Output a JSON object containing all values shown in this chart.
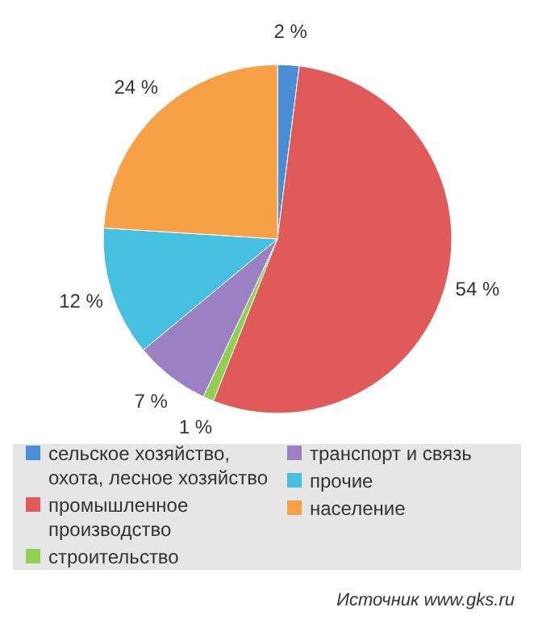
{
  "chart_data": {
    "type": "pie",
    "categories": [
      "сельское хозяйство, охота, лесное хозяйство",
      "промышленное производство",
      "строительство",
      "транспорт и связь",
      "прочие",
      "население"
    ],
    "values": [
      2,
      54,
      1,
      7,
      12,
      24
    ],
    "colors": [
      "#4a8fd6",
      "#e05a5a",
      "#8fd14f",
      "#9c80c4",
      "#45c0e0",
      "#f7a046"
    ],
    "value_labels": [
      "2 %",
      "54 %",
      "1 %",
      "7 %",
      "12 %",
      "24 %"
    ],
    "legend": "bottom",
    "annotations": [
      "Источник www.gks.ru"
    ]
  }
}
